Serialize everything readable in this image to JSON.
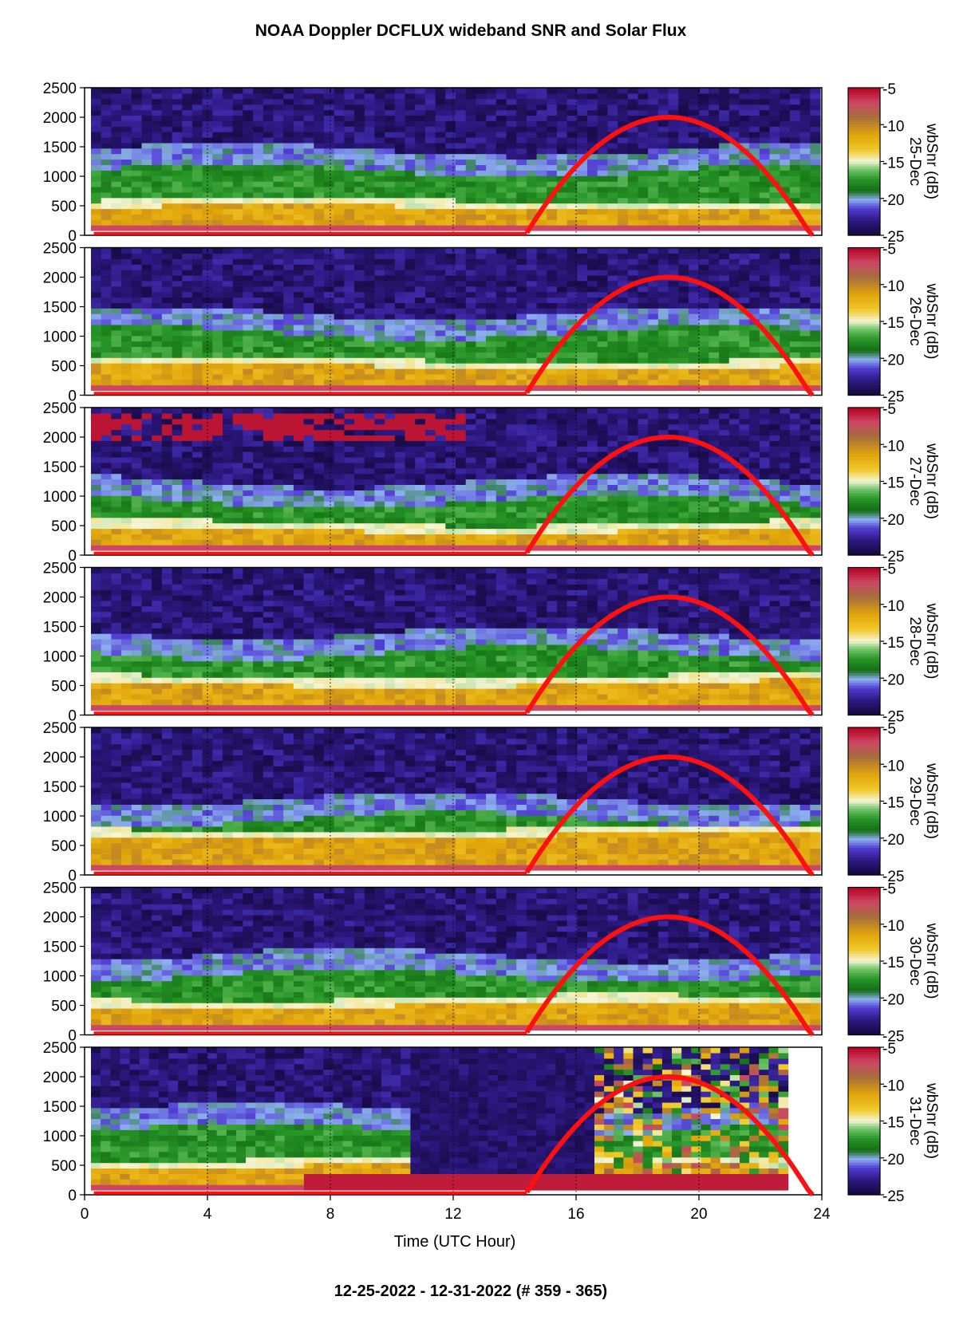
{
  "title": "NOAA Doppler DCFLUX wideband SNR and Solar Flux",
  "footer": "12-25-2022 - 12-31-2022   (# 359 - 365)",
  "chart_data": {
    "type": "heatmap",
    "xlabel": "Time (UTC Hour)",
    "xlim": [
      0,
      24
    ],
    "xticks": [
      "0",
      "4",
      "8",
      "12",
      "16",
      "20",
      "24"
    ],
    "ylim": [
      0,
      2500
    ],
    "yticks": [
      "0",
      "500",
      "1000",
      "1500",
      "2000",
      "2500"
    ],
    "colorbar": {
      "label": "wbSnr (dB)",
      "range": [
        -25,
        -5
      ],
      "ticks": [
        "-5",
        "-10",
        "-15",
        "-20",
        "-25"
      ],
      "colors": [
        "#1a0a4a",
        "#2a1a8a",
        "#4a3acc",
        "#8ab0ee",
        "#1a8a1a",
        "#3aaa3a",
        "#f0f0d0",
        "#e8c020",
        "#e0a000",
        "#a06a3a",
        "#c84060",
        "#b00020"
      ]
    },
    "solar_flux_color": "#ff1010",
    "solar_flux_curve": {
      "start_hour": 14.4,
      "peak_hour": 19.0,
      "end_hour": 23.7,
      "peak_value": 2000
    },
    "panels": [
      {
        "day": "25-Dec",
        "cb_label": "wbSnr (dB)",
        "green_base": 1100,
        "yellow_base": 450
      },
      {
        "day": "26-Dec",
        "cb_label": "wbSnr (dB)",
        "green_base": 1050,
        "yellow_base": 480
      },
      {
        "day": "27-Dec",
        "cb_label": "wbSnr (dB)",
        "green_base": 900,
        "yellow_base": 420
      },
      {
        "day": "28-Dec",
        "cb_label": "wbSnr (dB)",
        "green_base": 1050,
        "yellow_base": 520
      },
      {
        "day": "29-Dec",
        "cb_label": "wbSnr (dB)",
        "green_base": 950,
        "yellow_base": 650
      },
      {
        "day": "30-Dec",
        "cb_label": "wbSnr (dB)",
        "green_base": 1000,
        "yellow_base": 500
      },
      {
        "day": "31-Dec",
        "cb_label": "wbSnr (dB)",
        "green_base": 1100,
        "yellow_base": 500
      }
    ]
  }
}
